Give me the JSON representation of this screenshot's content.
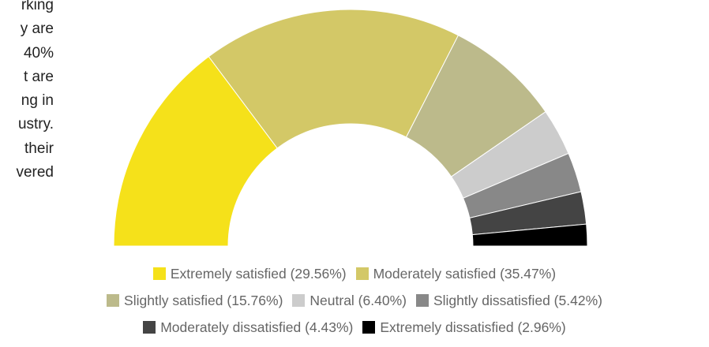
{
  "text_fragment": {
    "lines": [
      "rking",
      "y are",
      "40%",
      "t are",
      "ng in",
      "ustry.",
      "their",
      "vered"
    ]
  },
  "chart_data": {
    "type": "pie",
    "variant": "semi-donut",
    "series": [
      {
        "name": "Extremely satisfied",
        "value": 29.56,
        "color": "#f5e11a"
      },
      {
        "name": "Moderately satisfied",
        "value": 35.47,
        "color": "#d3c867"
      },
      {
        "name": "Slightly satisfied",
        "value": 15.76,
        "color": "#bcba8b"
      },
      {
        "name": "Neutral",
        "value": 6.4,
        "color": "#cccccc"
      },
      {
        "name": "Slightly dissatisfied",
        "value": 5.42,
        "color": "#888888"
      },
      {
        "name": "Moderately dissatisfied",
        "value": 4.43,
        "color": "#444444"
      },
      {
        "name": "Extremely dissatisfied",
        "value": 2.96,
        "color": "#000000"
      }
    ],
    "legend": {
      "position": "bottom",
      "labels": [
        "Extremely satisfied (29.56%)",
        "Moderately satisfied (35.47%)",
        "Slightly satisfied (15.76%)",
        "Neutral (6.40%)",
        "Slightly dissatisfied (5.42%)",
        "Moderately dissatisfied (4.43%)",
        "Extremely dissatisfied (2.96%)"
      ]
    }
  }
}
